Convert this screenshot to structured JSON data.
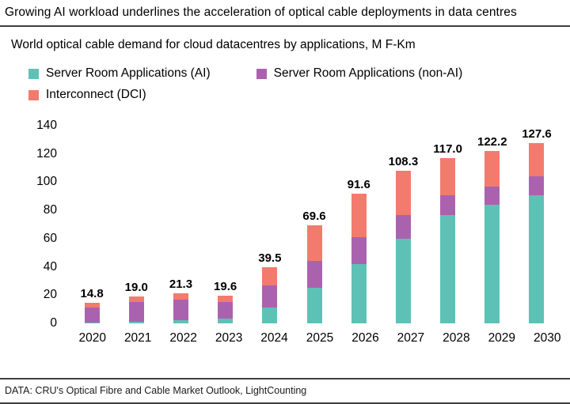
{
  "header": {
    "title": "Growing AI workload underlines the acceleration of optical cable deployments in data centres"
  },
  "subtitle": "World optical cable demand for cloud datacentres by applications, M F-Km",
  "footer": {
    "source": "DATA: CRU's Optical Fibre and Cable Market Outlook, LightCounting"
  },
  "colors": {
    "ai_teal": "#5ec1b6",
    "non_ai_purple": "#ab62ae",
    "dci_salmon": "#f27b6d",
    "rule_dark": "#3f3f3f"
  },
  "chart_data": {
    "type": "bar",
    "stacked": true,
    "title": "World optical cable demand for cloud datacentres by applications, M F-Km",
    "categories": [
      "2020",
      "2021",
      "2022",
      "2023",
      "2024",
      "2025",
      "2026",
      "2027",
      "2028",
      "2029",
      "2030"
    ],
    "series": [
      {
        "name": "Server Room Applications (AI)",
        "color": "#5ec1b6",
        "values": [
          0.5,
          1.0,
          2.0,
          3.5,
          11.0,
          25.0,
          42.0,
          60.0,
          77.0,
          84.0,
          91.0
        ]
      },
      {
        "name": "Server Room Applications (non-AI)",
        "color": "#ab62ae",
        "values": [
          10.5,
          14.0,
          15.0,
          11.5,
          16.0,
          19.0,
          19.0,
          17.0,
          14.0,
          13.0,
          13.0
        ]
      },
      {
        "name": "Interconnect (DCI)",
        "color": "#f27b6d",
        "values": [
          3.8,
          4.0,
          4.3,
          4.6,
          12.5,
          25.6,
          30.6,
          31.3,
          26.0,
          25.2,
          23.6
        ]
      }
    ],
    "totals": [
      14.8,
      19.0,
      21.3,
      19.6,
      39.5,
      69.6,
      91.6,
      108.3,
      117.0,
      122.2,
      127.6
    ],
    "total_labels": [
      "14.8",
      "19.0",
      "21.3",
      "19.6",
      "39.5",
      "69.6",
      "91.6",
      "108.3",
      "117.0",
      "122.2",
      "127.6"
    ],
    "xlabel": "",
    "ylabel": "",
    "ylim": [
      0,
      140
    ],
    "yticks": [
      0,
      20,
      40,
      60,
      80,
      100,
      120,
      140
    ],
    "grid": false,
    "legend_position": "top"
  }
}
